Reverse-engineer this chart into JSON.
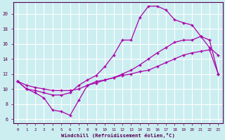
{
  "title": "",
  "xlabel": "Windchill (Refroidissement éolien,°C)",
  "ylabel": "",
  "background_color": "#cceef0",
  "line_color": "#aa00aa",
  "grid_color": "#ffffff",
  "xlim": [
    -0.5,
    23.5
  ],
  "ylim": [
    5.5,
    21.5
  ],
  "xticks": [
    0,
    1,
    2,
    3,
    4,
    5,
    6,
    7,
    8,
    9,
    10,
    11,
    12,
    13,
    14,
    15,
    16,
    17,
    18,
    19,
    20,
    21,
    22,
    23
  ],
  "yticks": [
    6,
    8,
    10,
    12,
    14,
    16,
    18,
    20
  ],
  "line_top_x": [
    0,
    1,
    2,
    3,
    4,
    5,
    6,
    7,
    8,
    9,
    10,
    11,
    12,
    13,
    14,
    15,
    16,
    17,
    18,
    19,
    20,
    21,
    22,
    23
  ],
  "line_top_y": [
    11.0,
    10.0,
    9.8,
    9.5,
    9.2,
    9.2,
    9.5,
    10.5,
    11.2,
    11.8,
    13.0,
    14.5,
    16.5,
    16.5,
    19.5,
    21.0,
    21.0,
    20.5,
    19.2,
    18.8,
    18.5,
    17.0,
    15.5,
    14.5
  ],
  "line_mid_x": [
    0,
    1,
    2,
    3,
    4,
    5,
    6,
    7,
    8,
    9,
    10,
    11,
    12,
    13,
    14,
    15,
    16,
    17,
    18,
    19,
    20,
    21,
    22,
    23
  ],
  "line_mid_y": [
    11.0,
    10.5,
    10.2,
    10.0,
    9.8,
    9.8,
    9.8,
    10.0,
    10.5,
    10.8,
    11.2,
    11.5,
    12.0,
    12.5,
    13.2,
    14.0,
    14.8,
    15.5,
    16.2,
    16.5,
    16.5,
    17.0,
    16.5,
    12.0
  ],
  "line_bot_x": [
    0,
    1,
    2,
    3,
    4,
    5,
    6,
    7,
    8,
    9,
    10,
    11,
    12,
    13,
    14,
    15,
    16,
    17,
    18,
    19,
    20,
    21,
    22,
    23
  ],
  "line_bot_y": [
    11.0,
    10.0,
    9.5,
    8.8,
    7.2,
    7.0,
    6.5,
    8.5,
    10.5,
    11.0,
    11.2,
    11.5,
    11.8,
    12.0,
    12.3,
    12.5,
    13.0,
    13.5,
    14.0,
    14.5,
    14.8,
    15.0,
    15.2,
    12.0
  ]
}
